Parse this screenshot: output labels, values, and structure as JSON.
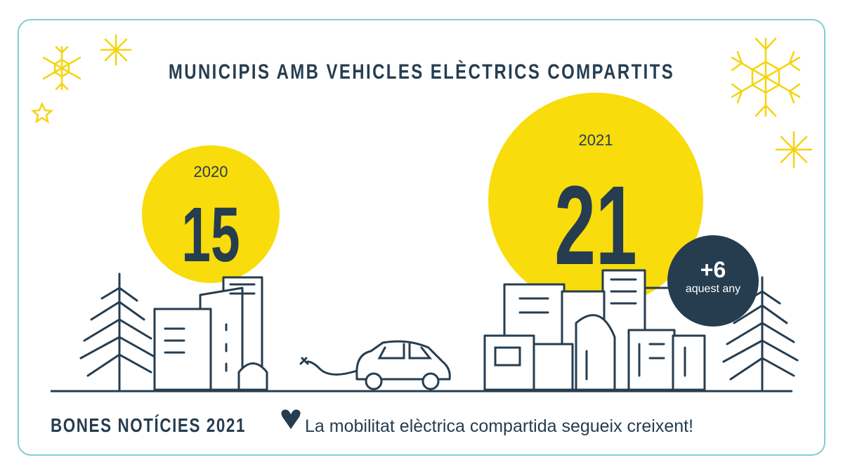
{
  "title": "MUNICIPIS AMB VEHICLES ELÈCTRICS COMPARTITS",
  "items": [
    {
      "year": "2020",
      "value": 15
    },
    {
      "year": "2021",
      "value": 21
    }
  ],
  "badge": {
    "value": "+6",
    "label": "aquest any"
  },
  "footer": {
    "heading": "BONES NOTÍCIES 2021",
    "text": "La mobilitat elèctrica compartida segueix creixent!"
  }
}
